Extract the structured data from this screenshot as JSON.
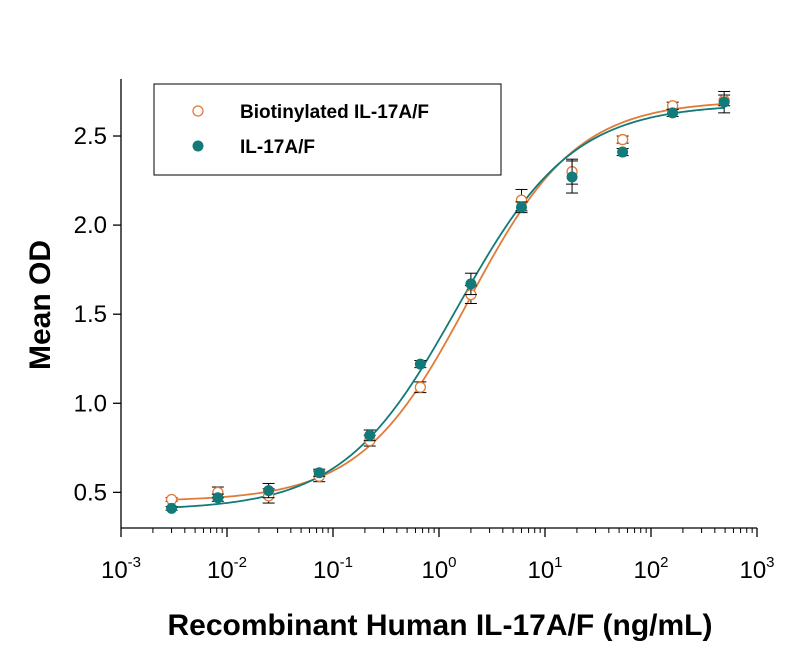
{
  "chart_data": {
    "type": "scatter",
    "title": "",
    "xlabel": "Recombinant Human IL-17A/F (ng/mL)",
    "ylabel": "Mean OD",
    "x_scale": "log",
    "xlim": [
      0.001,
      1000
    ],
    "ylim": [
      0.3,
      2.82
    ],
    "x_tick_base": "10",
    "x_tick_exponents": [
      "-3",
      "-2",
      "-1",
      "0",
      "1",
      "2",
      "3"
    ],
    "y_ticks": [
      "0.5",
      "1.0",
      "1.5",
      "2.0",
      "2.5"
    ],
    "grid": false,
    "legend_position": "top-left",
    "series": [
      {
        "name": "Biotinylated IL-17A/F",
        "marker": "open-circle",
        "color": "#E07B39",
        "x": [
          0.003,
          0.0082,
          0.0247,
          0.0741,
          0.222,
          0.667,
          2.0,
          6.0,
          18.0,
          54.0,
          160,
          490
        ],
        "y": [
          0.46,
          0.5,
          0.48,
          0.59,
          0.79,
          1.09,
          1.61,
          2.14,
          2.3,
          2.48,
          2.67,
          2.7
        ],
        "err": [
          0.01,
          0.03,
          0.04,
          0.03,
          0.03,
          0.03,
          0.05,
          0.06,
          0.07,
          0.02,
          0.02,
          0.03
        ],
        "fit": {
          "bottom": 0.45,
          "top": 2.7,
          "ec50": 1.9,
          "hill": 0.85
        }
      },
      {
        "name": "IL-17A/F",
        "marker": "filled-circle",
        "color": "#127A78",
        "x": [
          0.003,
          0.0082,
          0.0247,
          0.0741,
          0.222,
          0.667,
          2.0,
          6.0,
          18.0,
          54.0,
          160,
          490
        ],
        "y": [
          0.41,
          0.47,
          0.51,
          0.61,
          0.82,
          1.22,
          1.67,
          2.1,
          2.27,
          2.41,
          2.63,
          2.69
        ],
        "err": [
          0.01,
          0.02,
          0.04,
          0.02,
          0.03,
          0.02,
          0.06,
          0.03,
          0.09,
          0.02,
          0.02,
          0.06
        ],
        "fit": {
          "bottom": 0.4,
          "top": 2.68,
          "ec50": 1.5,
          "hill": 0.8
        }
      }
    ]
  }
}
